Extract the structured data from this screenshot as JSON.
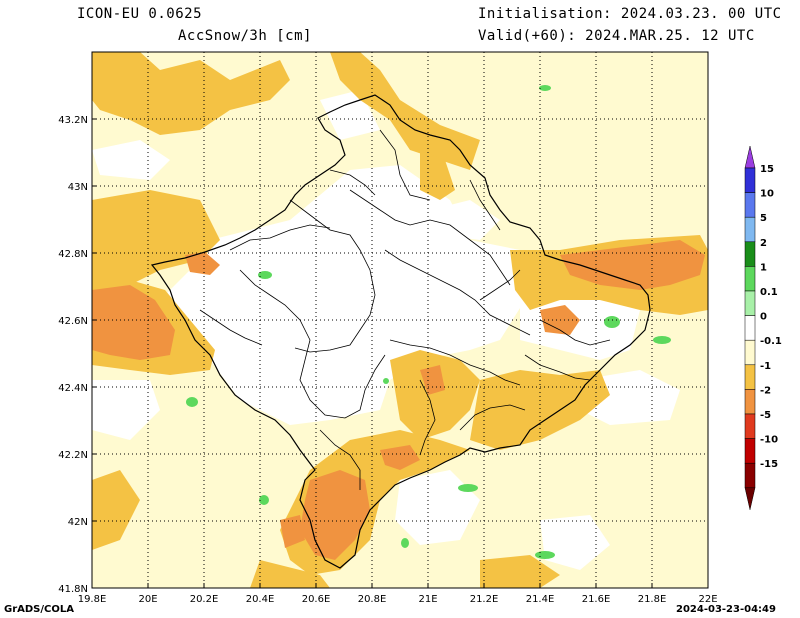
{
  "header": {
    "model": "ICON-EU 0.0625",
    "variable": "AccSnow/3h [cm]",
    "init": "Initialisation: 2024.03.23. 00 UTC",
    "valid": "Valid(+60): 2024.MAR.25. 12 UTC"
  },
  "map": {
    "x_ticks": [
      "19.8E",
      "20E",
      "20.2E",
      "20.4E",
      "20.6E",
      "20.8E",
      "21E",
      "21.2E",
      "21.4E",
      "21.6E",
      "21.8E",
      "22E"
    ],
    "y_ticks": [
      "43.2N",
      "43N",
      "42.8N",
      "42.6N",
      "42.4N",
      "42.2N",
      "42N",
      "41.8N"
    ],
    "lon_range": [
      19.8,
      22.0
    ],
    "lat_range": [
      41.8,
      43.4
    ]
  },
  "legend": {
    "labels": [
      "15",
      "10",
      "5",
      "2",
      "1",
      "0.1",
      "0",
      "-0.1",
      "-1",
      "-2",
      "-5",
      "-10",
      "-15"
    ],
    "colors": [
      "#3030d8",
      "#5a78ee",
      "#7fb8f0",
      "#1a8e1a",
      "#5dd85d",
      "#a8f0a8",
      "#ffffff",
      "#fffad0",
      "#f4c244",
      "#f09340",
      "#e03a1e",
      "#c00000",
      "#8a0000"
    ],
    "top_color": "#9a3de0",
    "bottom_color": "#6a0000"
  },
  "footer": {
    "left": "GrADS/COLA",
    "right": "2024-03-23-04:49"
  }
}
